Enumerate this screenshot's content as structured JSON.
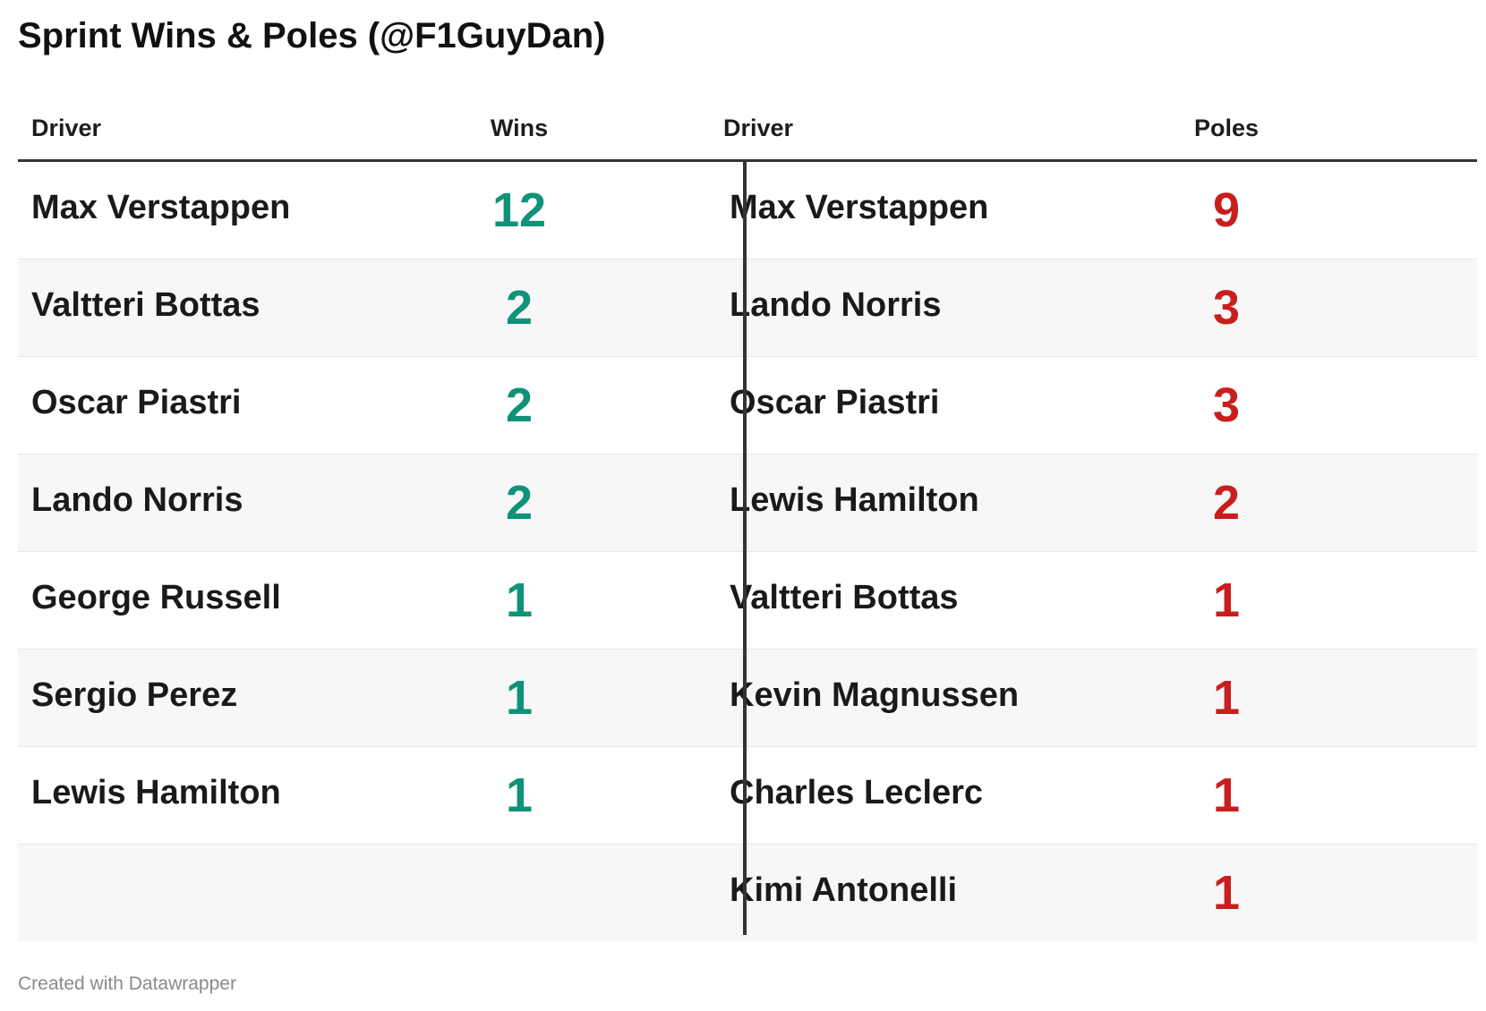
{
  "title": "Sprint Wins & Poles (@F1GuyDan)",
  "footer": "Created with Datawrapper",
  "colors": {
    "wins": "#0f9279",
    "poles": "#c81e1e"
  },
  "headers": {
    "left_driver": "Driver",
    "left_value": "Wins",
    "right_driver": "Driver",
    "right_value": "Poles"
  },
  "chart_data": {
    "type": "table",
    "title": "Sprint Wins & Poles (@F1GuyDan)",
    "columns": [
      "Driver",
      "Wins",
      "Driver",
      "Poles"
    ],
    "rows": [
      {
        "win_driver": "Max Verstappen",
        "wins": "12",
        "pole_driver": "Max Verstappen",
        "poles": "9"
      },
      {
        "win_driver": "Valtteri Bottas",
        "wins": "2",
        "pole_driver": "Lando Norris",
        "poles": "3"
      },
      {
        "win_driver": "Oscar Piastri",
        "wins": "2",
        "pole_driver": "Oscar Piastri",
        "poles": "3"
      },
      {
        "win_driver": "Lando Norris",
        "wins": "2",
        "pole_driver": "Lewis Hamilton",
        "poles": "2"
      },
      {
        "win_driver": "George Russell",
        "wins": "1",
        "pole_driver": "Valtteri Bottas",
        "poles": "1"
      },
      {
        "win_driver": "Sergio Perez",
        "wins": "1",
        "pole_driver": "Kevin Magnussen",
        "poles": "1"
      },
      {
        "win_driver": "Lewis Hamilton",
        "wins": "1",
        "pole_driver": "Charles Leclerc",
        "poles": "1"
      },
      {
        "win_driver": "",
        "wins": "",
        "pole_driver": "Kimi Antonelli",
        "poles": "1"
      }
    ]
  }
}
